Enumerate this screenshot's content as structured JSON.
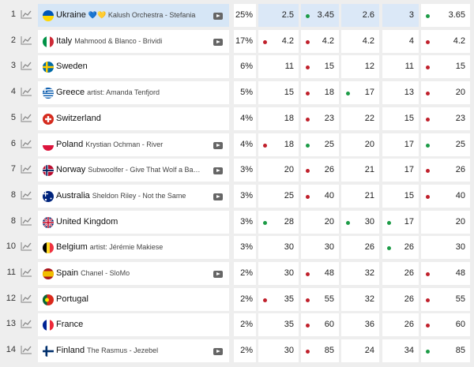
{
  "rows": [
    {
      "rank": "1",
      "country": "Ukraine",
      "artist": "💙💛 Kalush Orchestra - Stefania",
      "flag": "ua",
      "yt": true,
      "pct": "25%",
      "odds": [
        "2.5",
        "3.45",
        "2.6",
        "3",
        "3.65"
      ],
      "dots": [
        "",
        "g",
        "",
        "",
        "g"
      ]
    },
    {
      "rank": "2",
      "country": "Italy",
      "artist": "Mahmood & Blanco - Brividi",
      "flag": "it",
      "yt": true,
      "pct": "17%",
      "odds": [
        "4.2",
        "4.2",
        "4.2",
        "4",
        "4.2"
      ],
      "dots": [
        "r",
        "r",
        "",
        "",
        "r"
      ]
    },
    {
      "rank": "3",
      "country": "Sweden",
      "artist": "",
      "flag": "se",
      "yt": false,
      "pct": "6%",
      "odds": [
        "11",
        "15",
        "12",
        "11",
        "15"
      ],
      "dots": [
        "",
        "r",
        "",
        "",
        "r"
      ]
    },
    {
      "rank": "4",
      "country": "Greece",
      "artist": "artist: Amanda Tenfjord",
      "flag": "gr",
      "yt": false,
      "pct": "5%",
      "odds": [
        "15",
        "18",
        "17",
        "13",
        "20"
      ],
      "dots": [
        "",
        "r",
        "g",
        "",
        "r"
      ]
    },
    {
      "rank": "5",
      "country": "Switzerland",
      "artist": "",
      "flag": "ch",
      "yt": false,
      "pct": "4%",
      "odds": [
        "18",
        "23",
        "22",
        "15",
        "23"
      ],
      "dots": [
        "",
        "r",
        "",
        "",
        "r"
      ]
    },
    {
      "rank": "6",
      "country": "Poland",
      "artist": "Krystian Ochman - River",
      "flag": "pl",
      "yt": true,
      "pct": "4%",
      "odds": [
        "18",
        "25",
        "20",
        "17",
        "25"
      ],
      "dots": [
        "r",
        "g",
        "",
        "",
        "g"
      ]
    },
    {
      "rank": "7",
      "country": "Norway",
      "artist": "Subwoolfer - Give That Wolf a Ba…",
      "flag": "no",
      "yt": true,
      "pct": "3%",
      "odds": [
        "20",
        "26",
        "21",
        "17",
        "26"
      ],
      "dots": [
        "",
        "r",
        "",
        "",
        "r"
      ]
    },
    {
      "rank": "8",
      "country": "Australia",
      "artist": "Sheldon Riley - Not the Same",
      "flag": "au",
      "yt": true,
      "pct": "3%",
      "odds": [
        "25",
        "40",
        "21",
        "15",
        "40"
      ],
      "dots": [
        "",
        "r",
        "",
        "",
        "r"
      ]
    },
    {
      "rank": "8",
      "country": "United Kingdom",
      "artist": "",
      "flag": "gb",
      "yt": false,
      "pct": "3%",
      "odds": [
        "28",
        "20",
        "30",
        "17",
        "20"
      ],
      "dots": [
        "g",
        "",
        "g",
        "g",
        ""
      ]
    },
    {
      "rank": "10",
      "country": "Belgium",
      "artist": "artist: Jérémie Makiese",
      "flag": "be",
      "yt": false,
      "pct": "3%",
      "odds": [
        "30",
        "30",
        "26",
        "26",
        "30"
      ],
      "dots": [
        "",
        "",
        "",
        "g",
        ""
      ]
    },
    {
      "rank": "11",
      "country": "Spain",
      "artist": "Chanel - SloMo",
      "flag": "es",
      "yt": true,
      "pct": "2%",
      "odds": [
        "30",
        "48",
        "32",
        "26",
        "48"
      ],
      "dots": [
        "",
        "r",
        "",
        "",
        "r"
      ]
    },
    {
      "rank": "12",
      "country": "Portugal",
      "artist": "",
      "flag": "pt",
      "yt": false,
      "pct": "2%",
      "odds": [
        "35",
        "55",
        "32",
        "26",
        "55"
      ],
      "dots": [
        "r",
        "r",
        "",
        "",
        "r"
      ]
    },
    {
      "rank": "13",
      "country": "France",
      "artist": "",
      "flag": "fr",
      "yt": false,
      "pct": "2%",
      "odds": [
        "35",
        "60",
        "36",
        "26",
        "60"
      ],
      "dots": [
        "",
        "r",
        "",
        "",
        "r"
      ]
    },
    {
      "rank": "14",
      "country": "Finland",
      "artist": "The Rasmus - Jezebel",
      "flag": "fi",
      "yt": true,
      "pct": "2%",
      "odds": [
        "30",
        "85",
        "24",
        "34",
        "85"
      ],
      "dots": [
        "",
        "r",
        "",
        "",
        "g"
      ]
    }
  ],
  "colors": {
    "accent": "#dbe8f7",
    "up": "#1c9b46",
    "down": "#c0202b"
  },
  "icons": {
    "trend": "trend-chart-icon",
    "video": "youtube-icon"
  }
}
